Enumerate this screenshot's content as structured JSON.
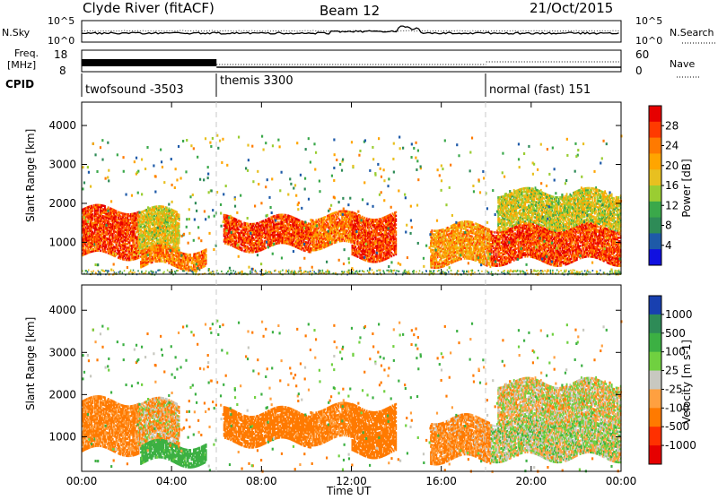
{
  "header": {
    "station": "Clyde River (fitACF)",
    "beam": "Beam 12",
    "date": "21/Oct/2015"
  },
  "nsky_panel": {
    "left_label": "N.Sky",
    "left_ticks": [
      "10^5",
      "10^0"
    ],
    "right_ticks": [
      "10^5",
      "10^0"
    ],
    "right_label": "N.Search"
  },
  "freq_panel": {
    "left_label_1": "Freq.",
    "left_label_2": "[MHz]",
    "left_ticks": [
      "18",
      "8"
    ],
    "right_ticks": [
      "60",
      "0"
    ],
    "right_label": "Nave"
  },
  "cpid": {
    "label": "CPID",
    "modes": [
      {
        "text": "twofsound -3503",
        "start_hour": 0
      },
      {
        "text": "themis 3300",
        "start_hour": 6
      },
      {
        "text": "normal (fast) 151",
        "start_hour": 18
      }
    ]
  },
  "chart_data": [
    {
      "type": "heatmap",
      "title": "Power",
      "ylabel": "Slant Range [km]",
      "xlabel": "",
      "ylim": [
        180,
        4600
      ],
      "y_ticks": [
        "1000",
        "2000",
        "3000",
        "4000"
      ],
      "colorbar_label": "Power [dB]",
      "colorbar_ticks": [
        "28",
        "24",
        "20",
        "16",
        "12",
        "8",
        "4"
      ],
      "colorbar_colors": [
        "#e60000",
        "#ff3a00",
        "#ff7a00",
        "#ffa500",
        "#e8c020",
        "#9acd32",
        "#3aa84a",
        "#2e8b57",
        "#1e5aa8",
        "#1010e0"
      ]
    },
    {
      "type": "heatmap",
      "title": "Velocity",
      "ylabel": "Slant Range [km]",
      "xlabel": "Time UT",
      "ylim": [
        180,
        4600
      ],
      "y_ticks": [
        "1000",
        "2000",
        "3000",
        "4000"
      ],
      "colorbar_label": "Velocity [m s-1]",
      "colorbar_ticks": [
        "1000",
        "500",
        "100",
        "25",
        "-25",
        "-100",
        "-500",
        "-1000"
      ],
      "colorbar_colors": [
        "#1840b0",
        "#2e8b57",
        "#3cb043",
        "#70d040",
        "#c8c8c0",
        "#ffa040",
        "#ff7a00",
        "#ff3000",
        "#e60000"
      ]
    }
  ],
  "time_axis": {
    "label": "Time UT",
    "ticks": [
      "00:00",
      "04:00",
      "08:00",
      "12:00",
      "16:00",
      "20:00",
      "00:00"
    ],
    "range_hours": [
      0,
      24
    ]
  },
  "echo_bands": [
    {
      "t0": 0.0,
      "t1": 2.5,
      "r0": 650,
      "r1": 1850,
      "power": 27,
      "vel": -150
    },
    {
      "t0": 2.5,
      "t1": 4.3,
      "r0": 750,
      "r1": 1800,
      "power": 18,
      "vel": -60
    },
    {
      "t0": 2.6,
      "t1": 5.5,
      "r0": 380,
      "r1": 800,
      "power": 24,
      "vel": 200
    },
    {
      "t0": 6.3,
      "t1": 10.2,
      "r0": 850,
      "r1": 1600,
      "power": 27,
      "vel": -200
    },
    {
      "t0": 10.2,
      "t1": 12.0,
      "r0": 900,
      "r1": 1700,
      "power": 24,
      "vel": -150
    },
    {
      "t0": 12.0,
      "t1": 14.0,
      "r0": 600,
      "r1": 1700,
      "power": 27,
      "vel": -250
    },
    {
      "t0": 15.5,
      "t1": 18.2,
      "r0": 450,
      "r1": 1400,
      "power": 22,
      "vel": -120
    },
    {
      "t0": 18.2,
      "t1": 24.0,
      "r0": 500,
      "r1": 1400,
      "power": 27,
      "vel": 20
    },
    {
      "t0": 18.5,
      "t1": 24.0,
      "r0": 1400,
      "r1": 2300,
      "power": 17,
      "vel": -10
    }
  ]
}
